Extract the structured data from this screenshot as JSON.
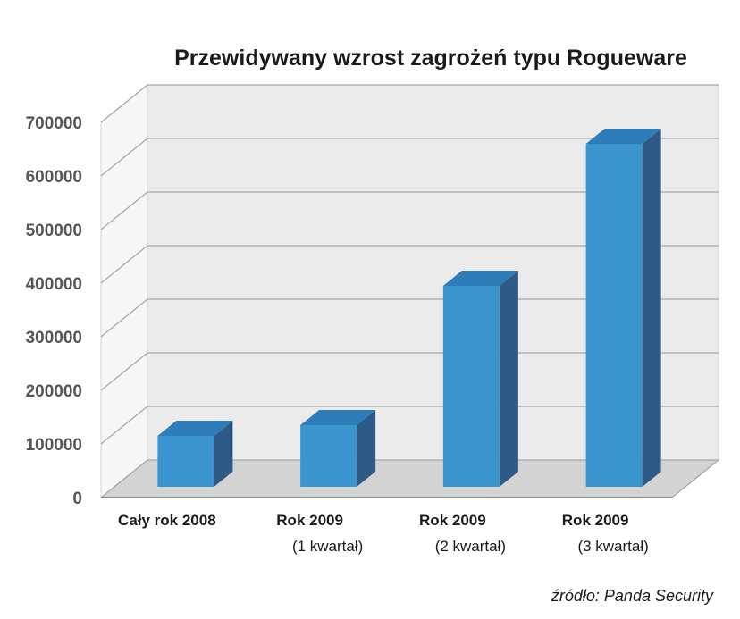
{
  "chart_data": {
    "type": "bar",
    "title": "Przewidywany wzrost zagrożeń typu Rogueware",
    "categories": [
      {
        "line1": "Cały rok 2008",
        "line2": ""
      },
      {
        "line1": "Rok 2009",
        "line2": "(1 kwartał)"
      },
      {
        "line1": "Rok 2009",
        "line2": "(2 kwartał)"
      },
      {
        "line1": "Rok 2009",
        "line2": "(3 kwartał)"
      }
    ],
    "values": [
      95000,
      115000,
      375000,
      640000
    ],
    "ylim": [
      0,
      700000
    ],
    "yticks": [
      "0",
      "100000",
      "200000",
      "300000",
      "400000",
      "500000",
      "600000",
      "700000"
    ],
    "grid": true,
    "three_d": true,
    "colors": {
      "bar_front": "#3a95cf",
      "bar_top": "#2f7db8",
      "bar_side": "#2d5a86",
      "wall": "#ebebeb",
      "floor": "#d3d3d3",
      "grid": "#a6a6a6"
    }
  },
  "source_text": "źródło: Panda Security"
}
